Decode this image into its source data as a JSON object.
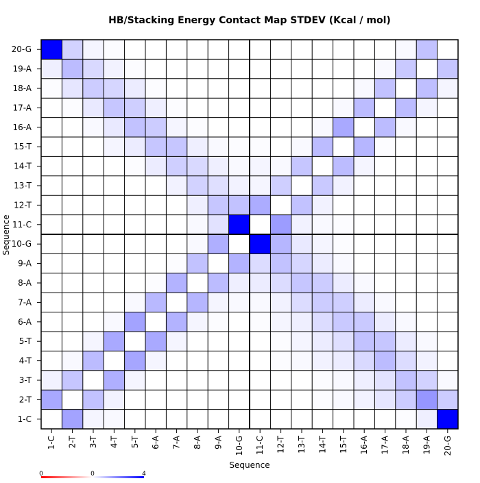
{
  "chart_data": {
    "type": "heatmap",
    "title": "HB/Stacking Energy Contact Map STDEV (Kcal / mol)",
    "xlabel": "Sequence",
    "ylabel": "Sequence",
    "x_categories": [
      "1-C",
      "2-T",
      "3-T",
      "4-T",
      "5-T",
      "6-A",
      "7-A",
      "8-A",
      "9-A",
      "10-G",
      "11-C",
      "12-T",
      "13-T",
      "14-T",
      "15-T",
      "16-A",
      "17-A",
      "18-A",
      "19-A",
      "20-G"
    ],
    "y_categories": [
      "1-C",
      "2-T",
      "3-T",
      "4-T",
      "5-T",
      "6-A",
      "7-A",
      "8-A",
      "9-A",
      "10-G",
      "11-C",
      "12-T",
      "13-T",
      "14-T",
      "15-T",
      "16-A",
      "17-A",
      "18-A",
      "19-A",
      "20-G"
    ],
    "values_note_rows_are_y_from_bottom": true,
    "values": [
      [
        0.0,
        1.45,
        0.15,
        0.1,
        0.0,
        0.0,
        0.0,
        0.0,
        0.0,
        0.0,
        0.0,
        0.0,
        0.0,
        0.0,
        0.0,
        0.0,
        0.0,
        0.05,
        0.25,
        4.0
      ],
      [
        1.35,
        0.0,
        0.95,
        0.2,
        0.0,
        0.0,
        0.0,
        0.0,
        0.0,
        0.0,
        0.0,
        0.0,
        0.0,
        0.05,
        0.1,
        0.2,
        0.4,
        0.8,
        1.65,
        0.8
      ],
      [
        0.2,
        0.9,
        0.0,
        1.25,
        0.15,
        0.0,
        0.0,
        0.0,
        0.0,
        0.0,
        0.0,
        0.0,
        0.0,
        0.05,
        0.1,
        0.25,
        0.45,
        0.95,
        0.7,
        0.1
      ],
      [
        0.0,
        0.1,
        1.05,
        0.0,
        1.4,
        0.15,
        0.0,
        0.0,
        0.0,
        0.0,
        0.0,
        0.05,
        0.1,
        0.2,
        0.3,
        0.6,
        1.05,
        0.55,
        0.2,
        0.0
      ],
      [
        0.0,
        0.0,
        0.15,
        1.35,
        0.0,
        1.35,
        0.15,
        0.0,
        0.0,
        0.0,
        0.0,
        0.05,
        0.15,
        0.3,
        0.5,
        0.95,
        0.9,
        0.3,
        0.1,
        0.0
      ],
      [
        0.0,
        0.0,
        0.0,
        0.1,
        1.45,
        0.0,
        1.2,
        0.15,
        0.05,
        0.0,
        0.05,
        0.15,
        0.25,
        0.55,
        0.85,
        0.85,
        0.3,
        0.1,
        0.0,
        0.0
      ],
      [
        0.0,
        0.0,
        0.0,
        0.0,
        0.1,
        1.1,
        0.0,
        1.15,
        0.15,
        0.1,
        0.1,
        0.2,
        0.55,
        0.8,
        0.75,
        0.3,
        0.1,
        0.0,
        0.0,
        0.0
      ],
      [
        0.0,
        0.0,
        0.0,
        0.0,
        0.0,
        0.05,
        1.2,
        0.0,
        1.05,
        0.25,
        0.3,
        0.55,
        0.9,
        0.8,
        0.3,
        0.1,
        0.0,
        0.0,
        0.0,
        0.0
      ],
      [
        0.0,
        0.0,
        0.0,
        0.0,
        0.0,
        0.0,
        0.05,
        0.95,
        0.0,
        1.2,
        0.55,
        0.95,
        0.65,
        0.3,
        0.1,
        0.0,
        0.0,
        0.0,
        0.0,
        0.0
      ],
      [
        0.0,
        0.0,
        0.0,
        0.0,
        0.0,
        0.0,
        0.0,
        0.1,
        1.25,
        0.0,
        4.0,
        1.15,
        0.35,
        0.15,
        0.05,
        0.0,
        0.0,
        0.0,
        0.0,
        0.0
      ],
      [
        0.0,
        0.0,
        0.0,
        0.0,
        0.0,
        0.0,
        0.0,
        0.1,
        0.45,
        4.0,
        0.0,
        1.55,
        0.2,
        0.1,
        0.05,
        0.0,
        0.0,
        0.0,
        0.0,
        0.0
      ],
      [
        0.0,
        0.0,
        0.0,
        0.0,
        0.0,
        0.0,
        0.0,
        0.25,
        0.9,
        0.95,
        1.3,
        0.0,
        0.95,
        0.2,
        0.0,
        0.0,
        0.0,
        0.0,
        0.0,
        0.0
      ],
      [
        0.0,
        0.0,
        0.0,
        0.0,
        0.0,
        0.0,
        0.2,
        0.7,
        0.5,
        0.2,
        0.15,
        0.75,
        0.0,
        0.85,
        0.2,
        0.0,
        0.0,
        0.0,
        0.0,
        0.0
      ],
      [
        0.0,
        0.0,
        0.0,
        0.0,
        0.05,
        0.3,
        0.75,
        0.6,
        0.25,
        0.1,
        0.15,
        0.1,
        0.9,
        0.0,
        1.05,
        0.15,
        0.0,
        0.0,
        0.0,
        0.0
      ],
      [
        0.0,
        0.0,
        0.0,
        0.15,
        0.3,
        0.9,
        0.9,
        0.25,
        0.1,
        0.05,
        0.05,
        0.0,
        0.1,
        1.05,
        0.0,
        1.15,
        0.05,
        0.0,
        0.0,
        0.0
      ],
      [
        0.0,
        0.0,
        0.1,
        0.35,
        0.95,
        0.8,
        0.15,
        0.05,
        0.0,
        0.0,
        0.0,
        0.0,
        0.0,
        0.1,
        1.35,
        0.0,
        1.05,
        0.1,
        0.0,
        0.0
      ],
      [
        0.0,
        0.05,
        0.35,
        0.9,
        0.75,
        0.25,
        0.05,
        0.0,
        0.0,
        0.0,
        0.0,
        0.0,
        0.0,
        0.0,
        0.1,
        1.05,
        0.0,
        1.05,
        0.15,
        0.0
      ],
      [
        0.05,
        0.4,
        0.8,
        0.65,
        0.3,
        0.05,
        0.0,
        0.0,
        0.0,
        0.0,
        0.0,
        0.0,
        0.0,
        0.0,
        0.0,
        0.1,
        0.95,
        0.0,
        1.0,
        0.15
      ],
      [
        0.25,
        1.05,
        0.6,
        0.2,
        0.05,
        0.0,
        0.0,
        0.0,
        0.0,
        0.0,
        0.0,
        0.0,
        0.0,
        0.0,
        0.0,
        0.0,
        0.1,
        0.85,
        0.0,
        0.9
      ],
      [
        4.0,
        0.7,
        0.15,
        0.05,
        0.0,
        0.0,
        0.0,
        0.0,
        0.0,
        0.0,
        0.0,
        0.0,
        0.0,
        0.0,
        0.0,
        0.0,
        0.0,
        0.1,
        0.95,
        0.0
      ]
    ],
    "zlim": [
      0,
      4
    ],
    "colorbar": {
      "tick_labels": [
        "0",
        "0",
        "4"
      ],
      "colors": [
        "#ff0000",
        "#ffffff",
        "#0000ff"
      ]
    },
    "divider_after_index": 9,
    "grid": true,
    "colors": {
      "high": "#0000ff",
      "low": "#ffffff",
      "grid": "#000000"
    }
  }
}
